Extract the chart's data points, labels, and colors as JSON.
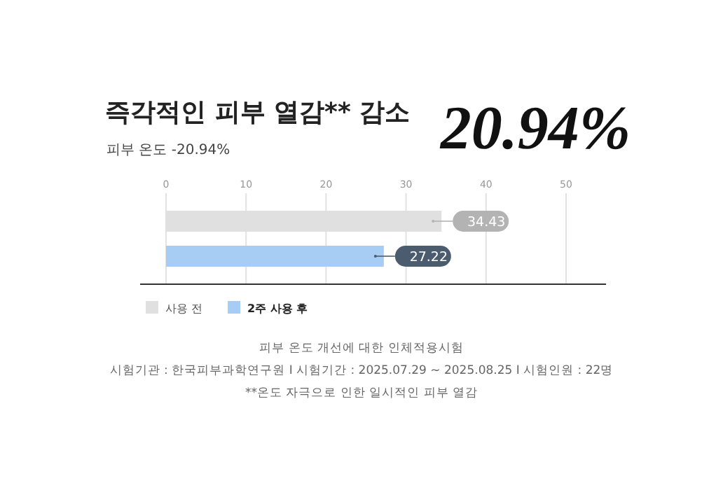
{
  "chart_data": {
    "type": "bar",
    "orientation": "horizontal",
    "title": "즉각적인 피부 열감** 감소",
    "subtitle": "피부 온도 -20.94%",
    "categories": [
      null
    ],
    "series": [
      {
        "name": "사용 전",
        "color": "#e0e0e0",
        "values": [
          34.43
        ]
      },
      {
        "name": "2주 사용 후",
        "color": "#a7cdf5",
        "values": [
          27.22
        ]
      }
    ],
    "xlim": [
      0,
      55
    ],
    "xticks": [
      0,
      10,
      20,
      30,
      40,
      50
    ],
    "grid": "x",
    "data_labels": true,
    "legend": "bottom left",
    "annotations": [
      "20.94%",
      "피부 온도 개선에 대한 인체적용시험",
      "시험기관 : 한국피부과학연구원 I 시험기간 : 2025.07.29 ~ 2025.08.25 I 시험인원 : 22명",
      "**온도 자극으로 인한 일시적인 피부 열감"
    ]
  }
}
